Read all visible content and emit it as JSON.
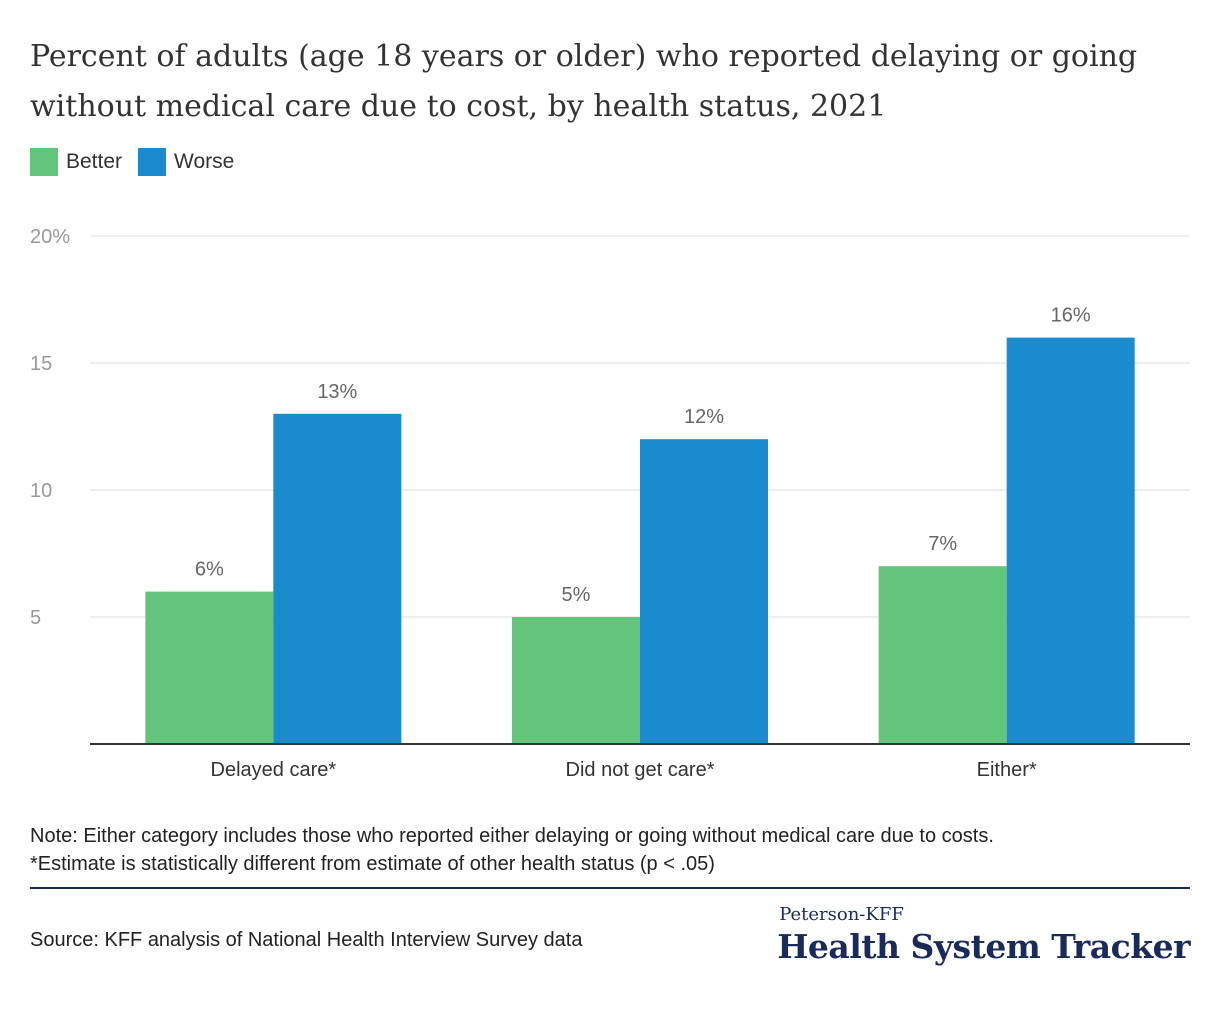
{
  "title": "Percent of adults (age 18 years or older) who reported delaying or going without medical care due to cost, by health status, 2021",
  "legend": [
    {
      "label": "Better",
      "color": "#63c57c"
    },
    {
      "label": "Worse",
      "color": "#1a8ccd"
    }
  ],
  "chart_data": {
    "type": "bar",
    "categories": [
      "Delayed care*",
      "Did not get care*",
      "Either*"
    ],
    "series": [
      {
        "name": "Better",
        "values": [
          6,
          5,
          7
        ],
        "labels": [
          "6%",
          "5%",
          "7%"
        ],
        "color": "#63c57c"
      },
      {
        "name": "Worse",
        "values": [
          13,
          12,
          16
        ],
        "labels": [
          "13%",
          "12%",
          "16%"
        ],
        "color": "#1a8ccd"
      }
    ],
    "ylim": [
      0,
      20
    ],
    "yticks": [
      5,
      10,
      15,
      20
    ],
    "ytick_labels": [
      "5",
      "10",
      "15",
      "20%"
    ],
    "grid": true,
    "legend_position": "top-left"
  },
  "note": {
    "line1": "Note: Either category includes those who reported either delaying or going without medical care due to costs.",
    "line2": "*Estimate is statistically different from estimate of other health status (p < .05)"
  },
  "source": "Source: KFF analysis of National Health Interview Survey data",
  "brand": {
    "top": "Peterson-KFF",
    "main": "Health System Tracker"
  }
}
